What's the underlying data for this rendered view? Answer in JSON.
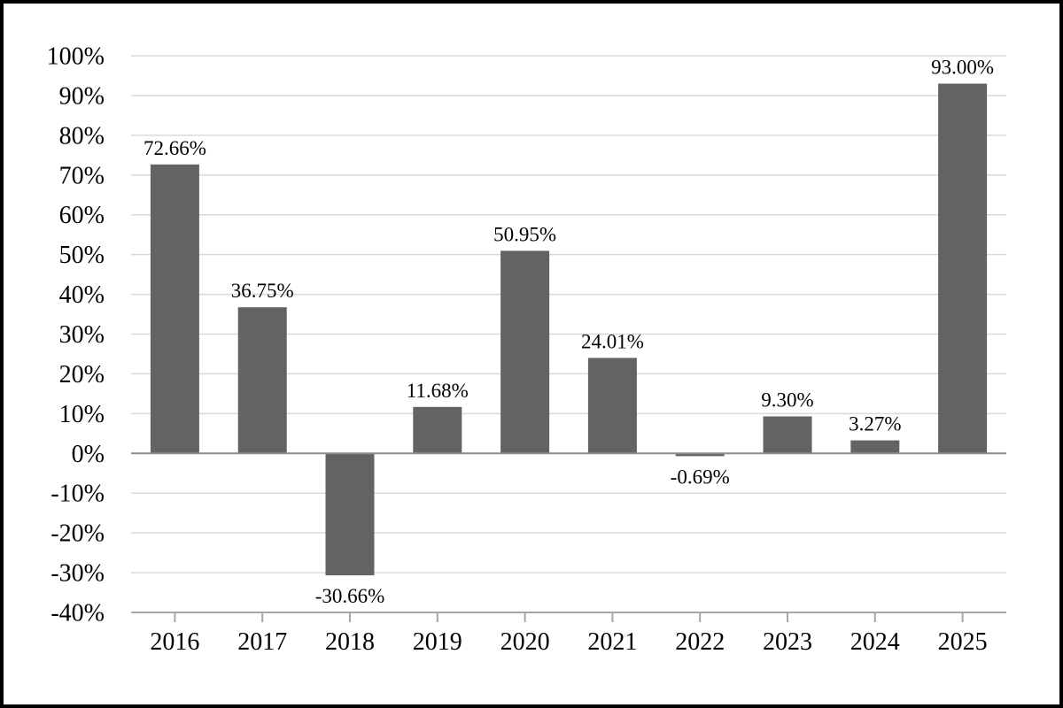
{
  "chart_data": {
    "type": "bar",
    "title": "",
    "xlabel": "",
    "ylabel": "",
    "categories": [
      "2016",
      "2017",
      "2018",
      "2019",
      "2020",
      "2021",
      "2022",
      "2023",
      "2024",
      "2025"
    ],
    "values": [
      72.66,
      36.75,
      -30.66,
      11.68,
      50.95,
      24.01,
      -0.69,
      9.3,
      3.27,
      93.0
    ],
    "bar_labels": [
      "72.66%",
      "36.75%",
      "-30.66%",
      "11.68%",
      "50.95%",
      "24.01%",
      "-0.69%",
      "9.30%",
      "3.27%",
      "93.00%"
    ],
    "ylim": [
      -40,
      100
    ],
    "ytick_step": 10,
    "ytick_labels": [
      "100%",
      "90%",
      "80%",
      "70%",
      "60%",
      "50%",
      "40%",
      "30%",
      "20%",
      "10%",
      "0%",
      "-10%",
      "-20%",
      "-30%",
      "-40%"
    ],
    "ytick_values": [
      100,
      90,
      80,
      70,
      60,
      50,
      40,
      30,
      20,
      10,
      0,
      -10,
      -20,
      -30,
      -40
    ],
    "grid": true,
    "legend_position": "none",
    "colors": {
      "bar": "#636363",
      "gridline": "#d9d9d9",
      "zero_line": "#8c8c8c",
      "axis_line": "#a6a6a6",
      "text": "#000000",
      "background": "#ffffff",
      "outer_border": "#000000"
    }
  }
}
